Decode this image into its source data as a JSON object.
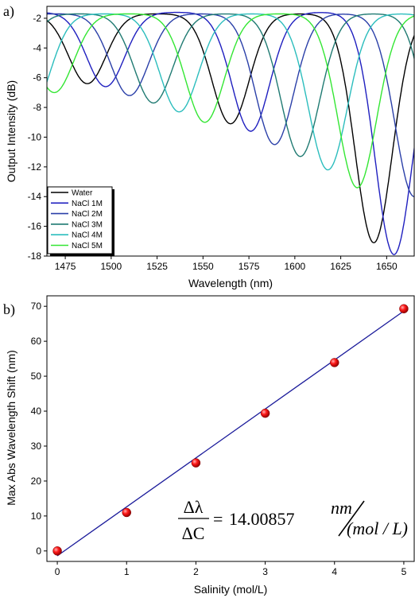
{
  "chart_data": [
    {
      "type": "line",
      "panel_label": "a)",
      "xlabel": "Wavelength (nm)",
      "ylabel": "Output Intensity (dB)",
      "xlim": [
        1465,
        1665
      ],
      "ylim": [
        -18,
        -1.2
      ],
      "xticks": [
        1475,
        1500,
        1525,
        1550,
        1575,
        1600,
        1625,
        1650
      ],
      "yticks": [
        -18,
        -16,
        -14,
        -12,
        -10,
        -8,
        -6,
        -4,
        -2
      ],
      "legend_position": "bottom-left",
      "series": [
        {
          "name": "Water",
          "color": "#000000",
          "period": 78,
          "max": -1.7,
          "dips": [
            [
              1487,
              -6.4
            ],
            [
              1565,
              -9.1
            ],
            [
              1643,
              -17.1
            ]
          ]
        },
        {
          "name": "NaCl 1M",
          "color": "#1f1fbf",
          "period": 79,
          "max": -1.6,
          "dips": [
            [
              1497,
              -6.6
            ],
            [
              1576,
              -9.6
            ],
            [
              1654,
              -17.9
            ]
          ]
        },
        {
          "name": "NaCl 2M",
          "color": "#2a3fa8",
          "period": 80,
          "max": -1.7,
          "dips": [
            [
              1510,
              -7.2
            ],
            [
              1589,
              -10.5
            ],
            [
              1665,
              -14.0
            ]
          ]
        },
        {
          "name": "NaCl 3M",
          "color": "#1f7a72",
          "period": 81,
          "max": -1.7,
          "dips": [
            [
              1523,
              -7.7
            ],
            [
              1603,
              -11.3
            ]
          ]
        },
        {
          "name": "NaCl 4M",
          "color": "#2bbdbd",
          "period": 81,
          "max": -1.7,
          "dips": [
            [
              1537,
              -8.3
            ],
            [
              1618,
              -12.2
            ]
          ]
        },
        {
          "name": "NaCl 5M",
          "color": "#33e633",
          "period": 81,
          "max": -1.7,
          "dips": [
            [
              1469,
              -7.0
            ],
            [
              1551,
              -9.0
            ],
            [
              1634,
              -13.4
            ]
          ]
        }
      ]
    },
    {
      "type": "scatter",
      "panel_label": "b)",
      "xlabel": "Salinity (mol/L)",
      "ylabel": "Max Abs Wavelength Shift (nm)",
      "xlim": [
        -0.15,
        5.15
      ],
      "ylim": [
        -3,
        73
      ],
      "xticks": [
        0,
        1,
        2,
        3,
        4,
        5
      ],
      "yticks": [
        0,
        10,
        20,
        30,
        40,
        50,
        60,
        70
      ],
      "points": {
        "x": [
          0,
          1,
          2,
          3,
          4,
          5
        ],
        "y": [
          0,
          11,
          25.2,
          39.4,
          53.9,
          69.3
        ]
      },
      "point_color": "#e00000",
      "fit": {
        "slope": 14.00857,
        "intercept": -1.4,
        "color": "#1a1a9a"
      },
      "equation": {
        "lhs_num": "Δλ",
        "lhs_den": "ΔC",
        "equals": "=",
        "value": "14.00857",
        "unit_num": "nm",
        "unit_den": "(mol / L)"
      }
    }
  ]
}
